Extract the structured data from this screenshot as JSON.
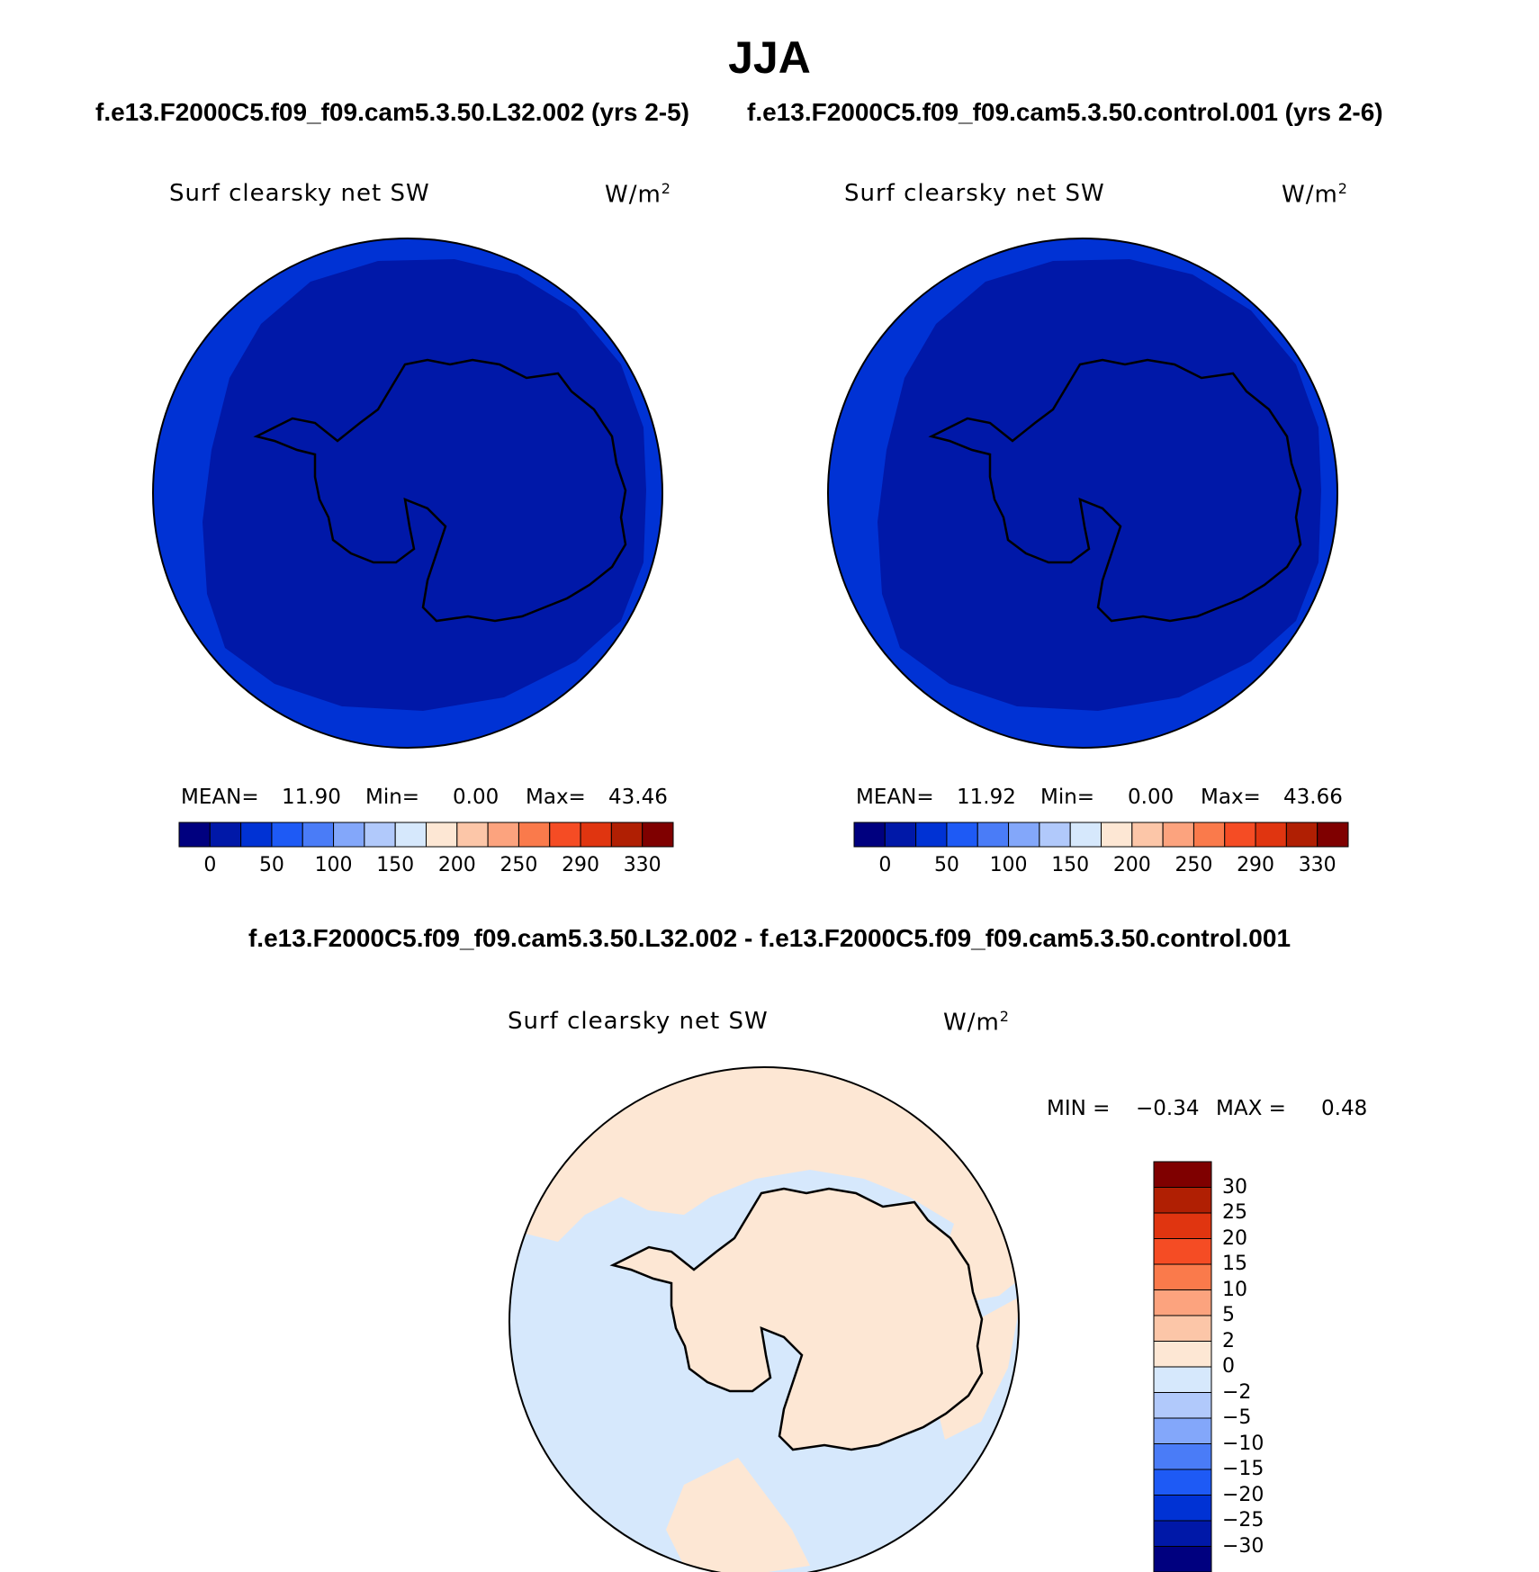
{
  "title": "JJA",
  "panels": [
    {
      "case_title": "f.e13.F2000C5.f09_f09.cam5.3.50.L32.002 (yrs 2-5)",
      "variable": "Surf clearsky net SW",
      "units": "W/m",
      "units_exp": "2",
      "mean_label": "MEAN=",
      "mean": "11.90",
      "min_label": "Min=",
      "min": "0.00",
      "max_label": "Max=",
      "max": "43.46"
    },
    {
      "case_title": "f.e13.F2000C5.f09_f09.cam5.3.50.control.001 (yrs 2-6)",
      "variable": "Surf clearsky net SW",
      "units": "W/m",
      "units_exp": "2",
      "mean_label": "MEAN=",
      "mean": "11.92",
      "min_label": "Min=",
      "min": "0.00",
      "max_label": "Max=",
      "max": "43.66"
    }
  ],
  "difference": {
    "title": "f.e13.F2000C5.f09_f09.cam5.3.50.L32.002 - f.e13.F2000C5.f09_f09.cam5.3.50.control.001",
    "variable": "Surf clearsky net SW",
    "units": "W/m",
    "units_exp": "2",
    "min_label": "MIN =",
    "min": "−0.34",
    "max_label": "MAX =",
    "max": "0.48"
  },
  "chart_data": [
    {
      "type": "heatmap",
      "projection": "south polar stereographic",
      "colorbar": {
        "orientation": "horizontal",
        "levels": [
          0,
          25,
          50,
          75,
          100,
          125,
          150,
          175,
          200,
          225,
          250,
          270,
          290,
          310,
          330
        ],
        "tick_labels": [
          "0",
          "50",
          "100",
          "150",
          "200",
          "250",
          "290",
          "330"
        ],
        "colors": [
          "#00007f",
          "#0018a8",
          "#0032d4",
          "#1e5af5",
          "#4a7cf7",
          "#83a7fa",
          "#b1c9fb",
          "#d6e8fc",
          "#fde7d4",
          "#fcc6a8",
          "#fca37e",
          "#fa7a4b",
          "#f54c24",
          "#e03510",
          "#b01f03",
          "#7f0000"
        ]
      },
      "field_summary": {
        "ocean_outer_ring": "25-50",
        "interior": "0-25"
      },
      "mean": 11.9,
      "min": 0.0,
      "max": 43.46
    },
    {
      "type": "heatmap",
      "projection": "south polar stereographic",
      "colorbar": {
        "orientation": "horizontal",
        "levels": [
          0,
          25,
          50,
          75,
          100,
          125,
          150,
          175,
          200,
          225,
          250,
          270,
          290,
          310,
          330
        ],
        "tick_labels": [
          "0",
          "50",
          "100",
          "150",
          "200",
          "250",
          "290",
          "330"
        ],
        "colors": [
          "#00007f",
          "#0018a8",
          "#0032d4",
          "#1e5af5",
          "#4a7cf7",
          "#83a7fa",
          "#b1c9fb",
          "#d6e8fc",
          "#fde7d4",
          "#fcc6a8",
          "#fca37e",
          "#fa7a4b",
          "#f54c24",
          "#e03510",
          "#b01f03",
          "#7f0000"
        ]
      },
      "field_summary": {
        "ocean_outer_ring": "25-50",
        "interior": "0-25"
      },
      "mean": 11.92,
      "min": 0.0,
      "max": 43.66
    },
    {
      "type": "heatmap",
      "projection": "south polar stereographic",
      "colorbar": {
        "orientation": "vertical",
        "levels": [
          -30,
          -25,
          -20,
          -15,
          -10,
          -5,
          -2,
          0,
          2,
          5,
          10,
          15,
          20,
          25,
          30
        ],
        "tick_labels": [
          "30",
          "25",
          "20",
          "15",
          "10",
          "5",
          "2",
          "0",
          "−2",
          "−5",
          "−10",
          "−15",
          "−20",
          "−25",
          "−30"
        ],
        "colors": [
          "#00007f",
          "#0018a8",
          "#0032d4",
          "#1e5af5",
          "#4a7cf7",
          "#83a7fa",
          "#b1c9fb",
          "#d6e8fc",
          "#fde7d4",
          "#fcc6a8",
          "#fca37e",
          "#fa7a4b",
          "#f54c24",
          "#e03510",
          "#b01f03",
          "#7f0000"
        ]
      },
      "field_summary": {
        "positive_regions": "0-2",
        "negative_regions": "-2-0"
      },
      "min": -0.34,
      "max": 0.48
    }
  ],
  "colors": {
    "outer_ring": "#0032d4",
    "interior": "#0018a8",
    "diff_pos": "#fde7d4",
    "diff_neg": "#d6e8fc"
  }
}
